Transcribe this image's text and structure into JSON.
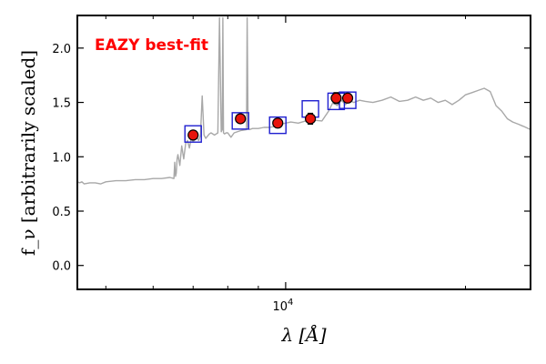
{
  "chart_data": {
    "type": "line",
    "xlabel": "λ [Å]",
    "ylabel": "f_ν [arbitrarily scaled]",
    "xscale": "log",
    "xlim": [
      4480,
      25700
    ],
    "ylim": [
      -0.22,
      2.3
    ],
    "yticks": [
      0.0,
      0.5,
      1.0,
      1.5,
      2.0
    ],
    "ytick_labels": [
      "0.0",
      "0.5",
      "1.0",
      "1.5",
      "2.0"
    ],
    "xtick_values": [
      10000
    ],
    "xtick_labels": [
      "10^4"
    ],
    "annotation": "EAZY best-fit",
    "grid": false,
    "colors": {
      "model": "#a8a8a8",
      "observed_fill": "#e8140c",
      "model_box": "#1f1fd0",
      "annotation": "#ff0000"
    },
    "series": [
      {
        "kind": "model_spectrum",
        "x": [
          4480,
          4520,
          4560,
          4600,
          4700,
          4800,
          4900,
          5000,
          5200,
          5400,
          5600,
          5800,
          6000,
          6200,
          6400,
          6500,
          6520,
          6540,
          6560,
          6580,
          6600,
          6650,
          6700,
          6750,
          6800,
          6850,
          6900,
          6950,
          7000,
          7050,
          7100,
          7150,
          7200,
          7250,
          7300,
          7350,
          7400,
          7450,
          7500,
          7600,
          7700,
          7750,
          7800,
          7830,
          7850,
          7870,
          7900,
          7950,
          8000,
          8100,
          8200,
          8400,
          8600,
          8620,
          8650,
          8700,
          8800,
          9000,
          9200,
          9400,
          9600,
          9800,
          10000,
          10200,
          10500,
          10800,
          11000,
          11500,
          11800,
          12000,
          12200,
          12400,
          12600,
          12800,
          13000,
          13300,
          13600,
          14000,
          14500,
          15000,
          15500,
          16000,
          16500,
          17000,
          17500,
          18000,
          18500,
          19000,
          19500,
          20000,
          20500,
          21000,
          21500,
          22000,
          22500,
          23000,
          23500,
          24000,
          24500,
          25000,
          25700
        ],
        "y": [
          0.77,
          0.76,
          0.77,
          0.75,
          0.76,
          0.76,
          0.75,
          0.77,
          0.78,
          0.78,
          0.79,
          0.79,
          0.8,
          0.8,
          0.81,
          0.8,
          0.95,
          0.82,
          0.85,
          0.98,
          1.02,
          0.92,
          1.1,
          0.98,
          1.12,
          1.15,
          1.08,
          1.17,
          1.14,
          1.16,
          1.18,
          1.15,
          1.2,
          1.56,
          1.2,
          1.17,
          1.19,
          1.21,
          1.22,
          1.2,
          1.22,
          2.28,
          1.23,
          1.25,
          2.28,
          1.22,
          1.21,
          1.22,
          1.22,
          1.18,
          1.22,
          1.24,
          1.25,
          2.28,
          1.27,
          1.25,
          1.26,
          1.26,
          1.27,
          1.27,
          1.28,
          1.3,
          1.31,
          1.32,
          1.31,
          1.33,
          1.34,
          1.33,
          1.42,
          1.5,
          1.47,
          1.52,
          1.48,
          1.52,
          1.5,
          1.52,
          1.51,
          1.5,
          1.52,
          1.55,
          1.51,
          1.52,
          1.55,
          1.52,
          1.54,
          1.5,
          1.52,
          1.48,
          1.52,
          1.57,
          1.59,
          1.61,
          1.63,
          1.6,
          1.47,
          1.42,
          1.35,
          1.32,
          1.3,
          1.28,
          1.25
        ]
      },
      {
        "kind": "model_photometry",
        "x": [
          7000,
          8400,
          9700,
          11000,
          12150,
          12700
        ],
        "y": [
          1.21,
          1.33,
          1.29,
          1.44,
          1.51,
          1.52
        ]
      },
      {
        "kind": "observed_photometry",
        "x": [
          7000,
          8400,
          9700,
          11000,
          12150,
          12700
        ],
        "y": [
          1.2,
          1.35,
          1.31,
          1.35,
          1.54,
          1.54
        ],
        "yerr": [
          0.02,
          0.02,
          0.02,
          0.05,
          0.05,
          0.02
        ]
      }
    ]
  }
}
